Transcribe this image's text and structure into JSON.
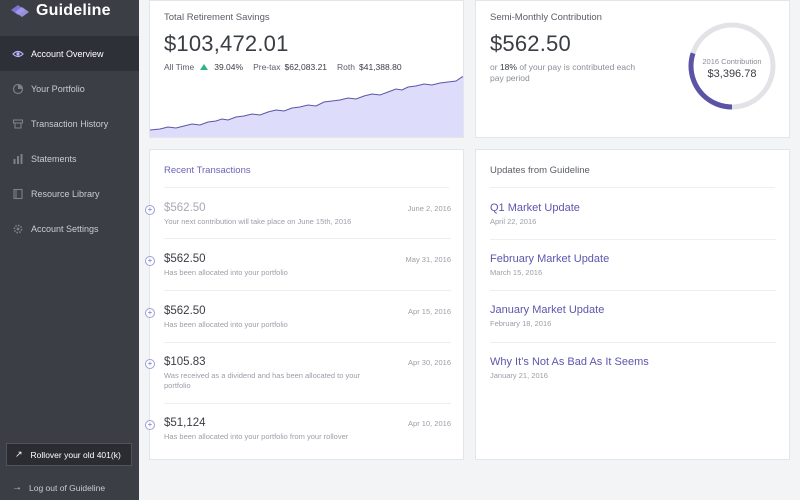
{
  "brand": {
    "name": "Guideline"
  },
  "sidebar": {
    "items": [
      {
        "label": "Account Overview",
        "icon": "eye-icon"
      },
      {
        "label": "Your Portfolio",
        "icon": "pie-chart-icon"
      },
      {
        "label": "Transaction History",
        "icon": "transactions-icon"
      },
      {
        "label": "Statements",
        "icon": "bar-chart-icon"
      },
      {
        "label": "Resource Library",
        "icon": "book-icon"
      },
      {
        "label": "Account Settings",
        "icon": "gear-icon"
      }
    ],
    "rollover_label": "Rollover your old 401(k)",
    "logout_label": "Log out of Guideline"
  },
  "savings": {
    "title": "Total Retirement Savings",
    "total": "$103,472.01",
    "all_time_label": "All Time",
    "all_time_value": "39.04%",
    "pretax_label": "Pre-tax",
    "pretax_value": "$62,083.21",
    "roth_label": "Roth",
    "roth_value": "$41,388.80"
  },
  "contribution": {
    "title": "Semi-Monthly Contribution",
    "amount": "$562.50",
    "note_prefix": "or",
    "note_pct": "18%",
    "note_suffix": "of your pay is contributed each pay period",
    "donut_label": "2016 Contribution",
    "donut_value": "$3,396.78",
    "donut_fraction": 0.3
  },
  "transactions": {
    "title": "Recent Transactions",
    "items": [
      {
        "amount": "$562.50",
        "desc": "Your next contribution will take place on June 15th, 2016",
        "date": "June 2, 2016"
      },
      {
        "amount": "$562.50",
        "desc": "Has been allocated into your portfolio",
        "date": "May 31, 2016"
      },
      {
        "amount": "$562.50",
        "desc": "Has been allocated into your portfolio",
        "date": "Apr 15, 2016"
      },
      {
        "amount": "$105.83",
        "desc": "Was received as a dividend and has been allocated to your portfolio",
        "date": "Apr 30, 2016"
      },
      {
        "amount": "$51,124",
        "desc": "Has been allocated into your portfolio from your rollover",
        "date": "Apr 10, 2016"
      }
    ]
  },
  "updates": {
    "title": "Updates from Guideline",
    "items": [
      {
        "title": "Q1 Market Update",
        "date": "April 22, 2016"
      },
      {
        "title": "February Market Update",
        "date": "March 15, 2016"
      },
      {
        "title": "January Market Update",
        "date": "February 18, 2016"
      },
      {
        "title": "Why It’s Not As Bad As It Seems",
        "date": "January 21, 2016"
      }
    ]
  },
  "colors": {
    "accent": "#6a63b8",
    "positive": "#2fb38a",
    "chart_fill": "#dedcfb",
    "chart_line": "#5b55a8",
    "sidebar": "#3b3e45"
  }
}
